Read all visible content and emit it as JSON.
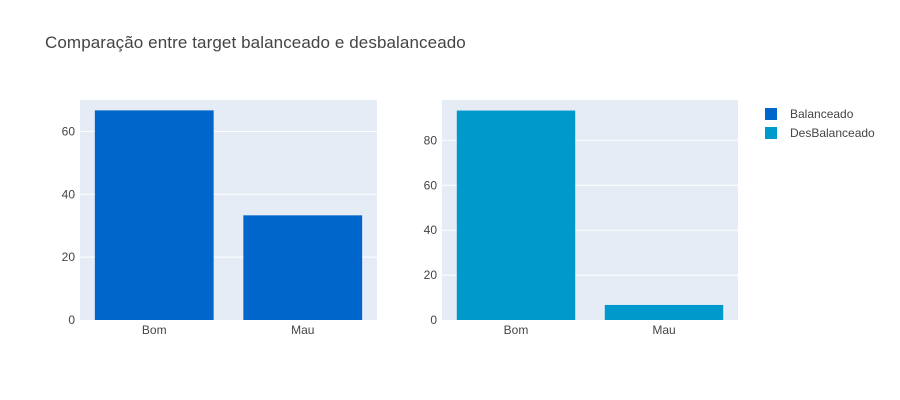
{
  "chart_data": {
    "title": "Comparação entre target balanceado e desbalanceado",
    "type": "bar",
    "subplots": [
      {
        "series_name": "Balanceado",
        "categories": [
          "Bom",
          "Mau"
        ],
        "values": [
          66.7,
          33.3
        ],
        "ylim": [
          0,
          70
        ],
        "yticks": [
          0,
          20,
          40,
          60
        ],
        "color": "#0066CC"
      },
      {
        "series_name": "DesBalanceado",
        "categories": [
          "Bom",
          "Mau"
        ],
        "values": [
          93.3,
          6.7
        ],
        "ylim": [
          0,
          98
        ],
        "yticks": [
          0,
          20,
          40,
          60,
          80
        ],
        "color": "#0099CC"
      }
    ],
    "legend": {
      "position": "top-right",
      "entries": [
        {
          "name": "Balanceado",
          "color": "#0066CC"
        },
        {
          "name": "DesBalanceado",
          "color": "#0099CC"
        }
      ]
    },
    "plot_background": "#E5ECF6",
    "grid": true
  }
}
